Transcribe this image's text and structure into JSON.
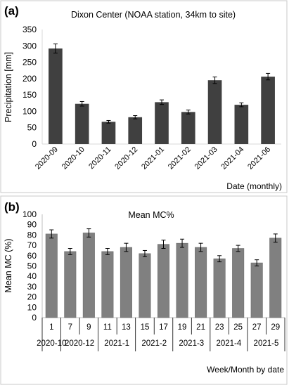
{
  "colors": {
    "bar_a": "#404040",
    "bar_b": "#808080",
    "panel_border": "#c8c8c8",
    "axis": "#d9d9d9",
    "text": "#000000"
  },
  "chart_data": [
    {
      "panel_label": "(a)",
      "type": "bar",
      "title": "Dixon Center (NOAA station, 34km to site)",
      "xlabel": "Date (monthly)",
      "ylabel": "Precipitation [mm]",
      "ylim": [
        0,
        350
      ],
      "yticks": [
        0,
        50,
        100,
        150,
        200,
        250,
        300,
        350
      ],
      "grid": false,
      "categories": [
        "2020-09",
        "2020-10",
        "2020-11",
        "2020-12",
        "2021-01",
        "2021-02",
        "2021-03",
        "2021-04",
        "2021-06"
      ],
      "values": [
        292,
        123,
        68,
        82,
        128,
        98,
        195,
        120,
        206
      ],
      "errors": [
        14,
        7,
        4,
        5,
        7,
        6,
        10,
        6,
        10
      ]
    },
    {
      "panel_label": "(b)",
      "type": "bar",
      "title": "Mean MC%",
      "xlabel": "Week/Month by date",
      "ylabel": "Mean MC (%)",
      "ylim": [
        0,
        100
      ],
      "yticks": [
        0,
        10,
        20,
        30,
        40,
        50,
        60,
        70,
        80,
        90,
        100
      ],
      "grid": false,
      "categories": [
        "1",
        "7",
        "9",
        "11",
        "13",
        "15",
        "17",
        "19",
        "21",
        "23",
        "25",
        "27",
        "29"
      ],
      "month_groups": [
        {
          "label": "2020-10",
          "span": 1
        },
        {
          "label": "2020-12",
          "span": 2
        },
        {
          "label": "2021-1",
          "span": 2
        },
        {
          "label": "2021-2",
          "span": 2
        },
        {
          "label": "2021-3",
          "span": 2
        },
        {
          "label": "2021-4",
          "span": 2
        },
        {
          "label": "2021-5",
          "span": 2
        }
      ],
      "values": [
        81,
        64,
        82,
        64,
        68,
        62,
        71,
        72,
        68,
        57,
        67,
        53,
        77
      ],
      "errors": [
        4,
        3,
        4,
        3,
        4,
        3,
        4,
        4,
        4,
        3,
        3,
        3,
        4
      ]
    }
  ]
}
